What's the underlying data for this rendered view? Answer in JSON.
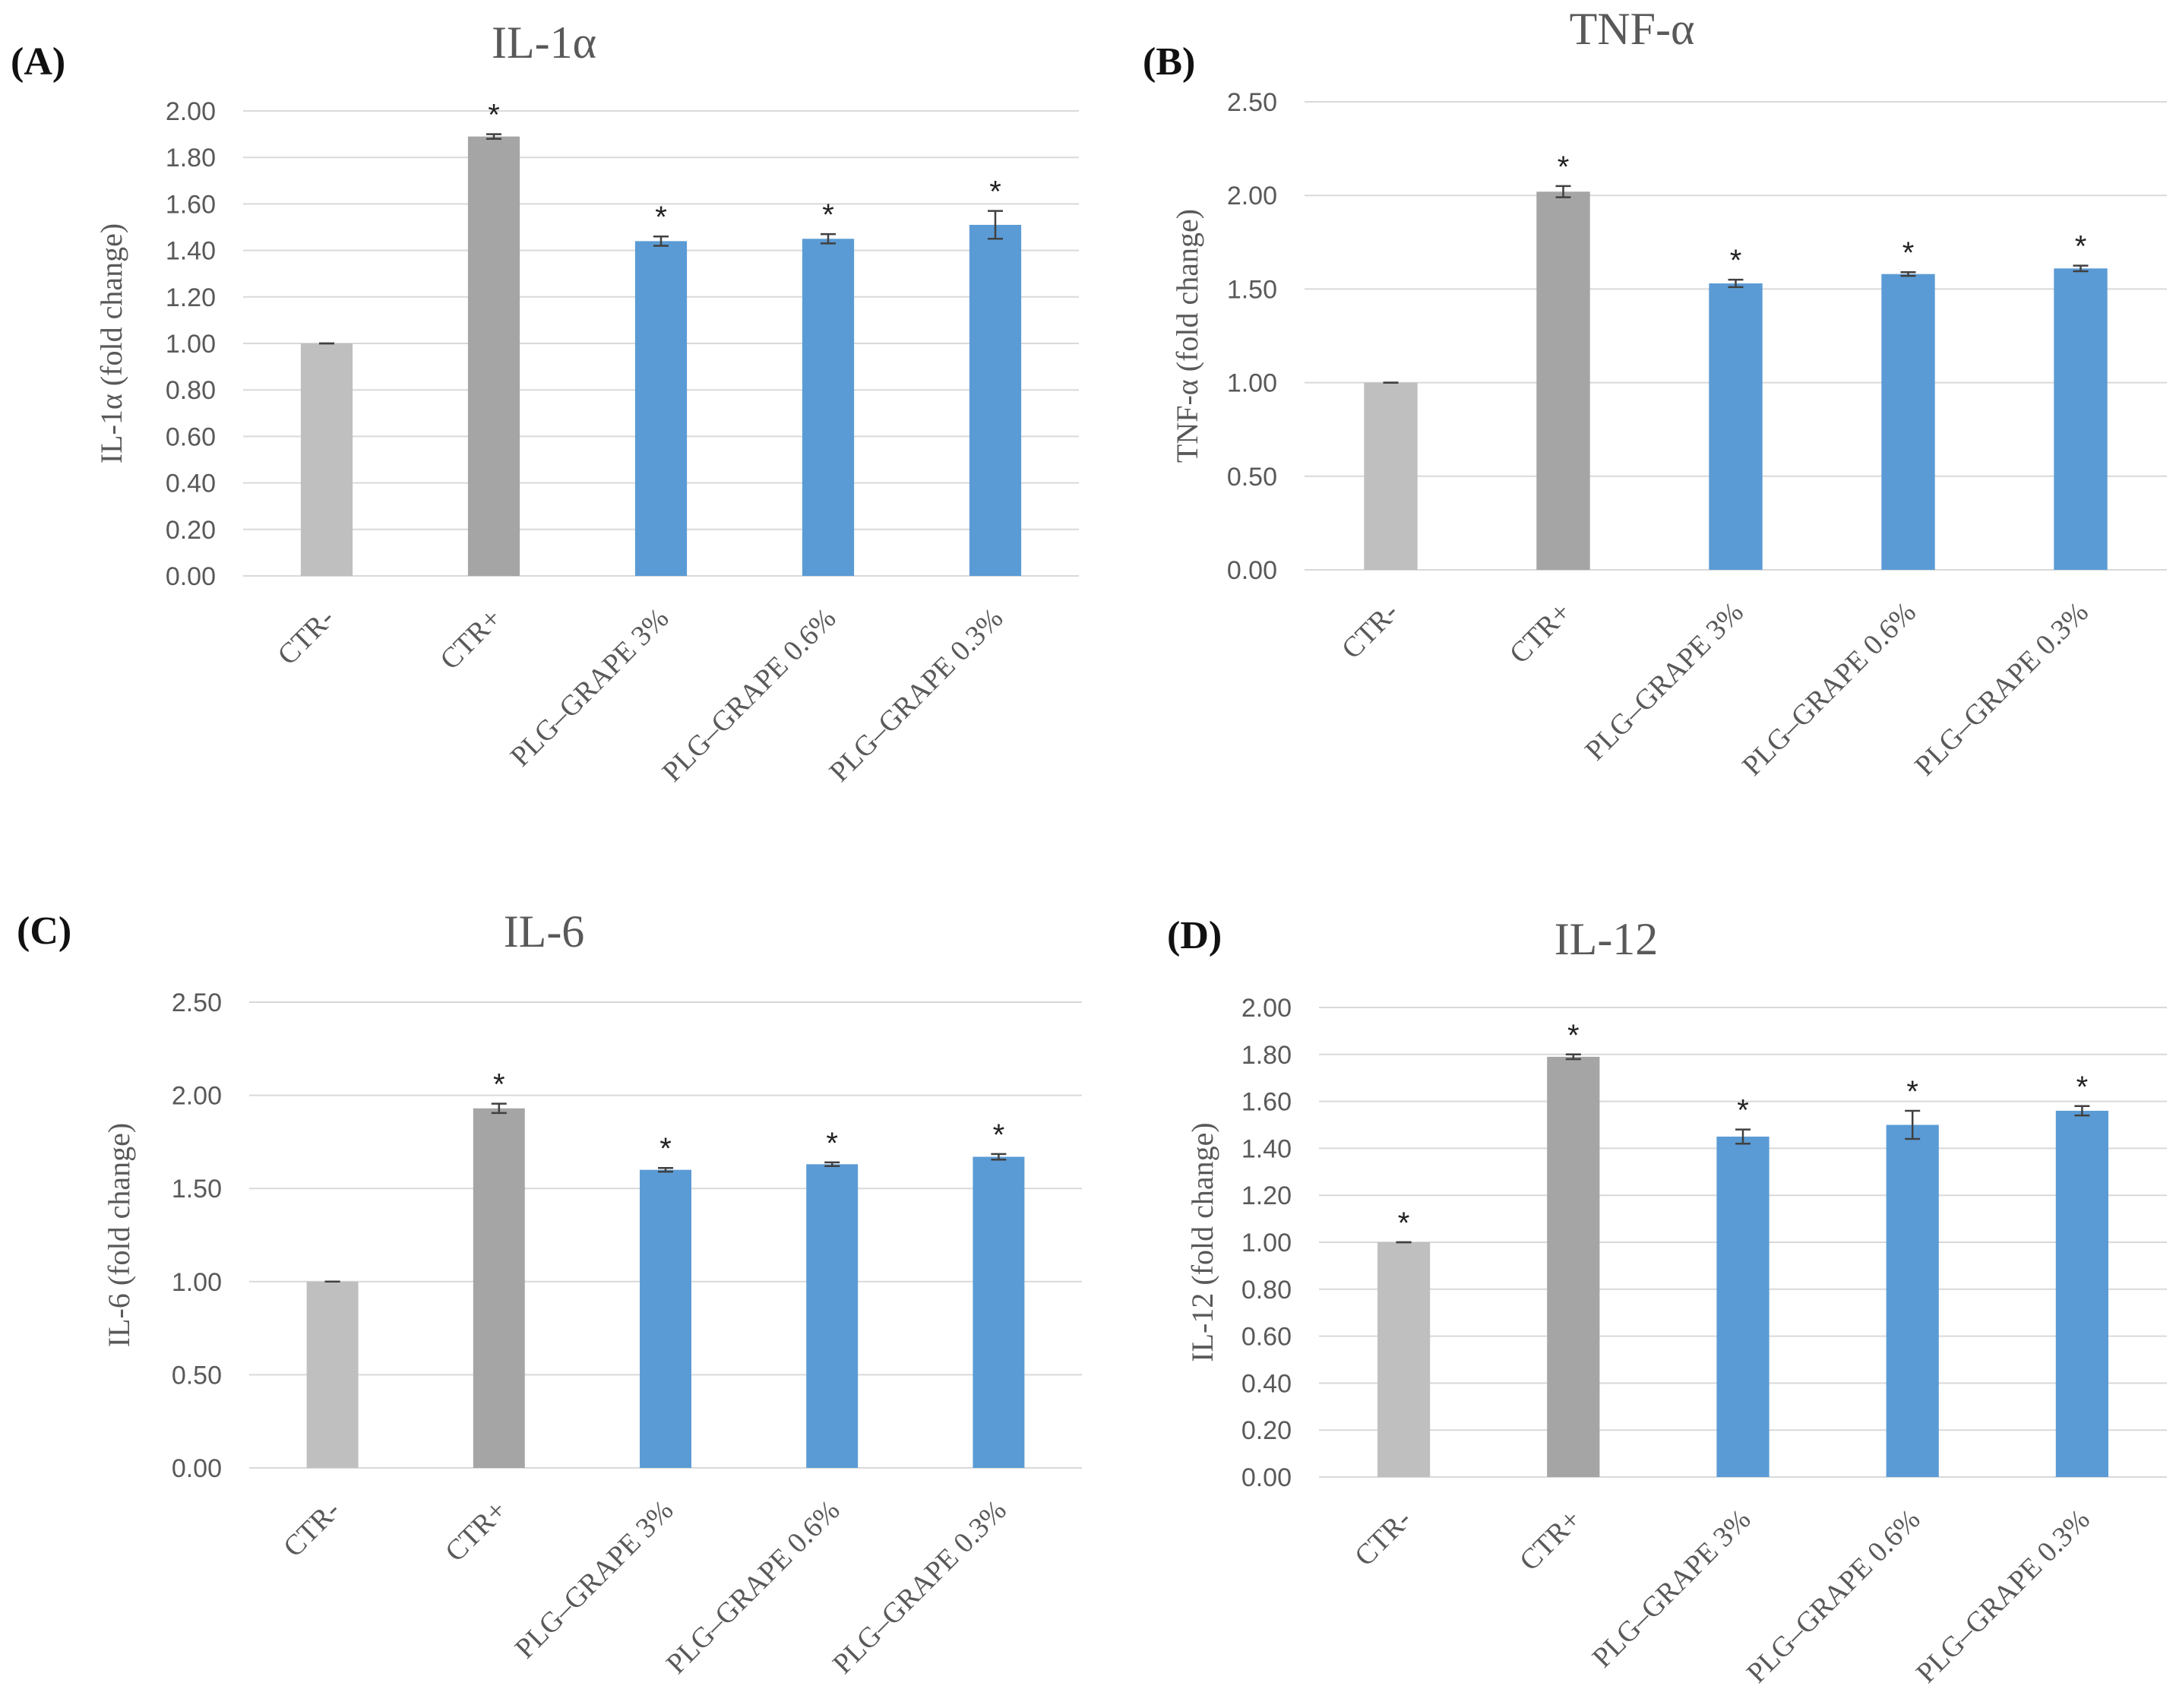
{
  "colors": {
    "negative_control": "#bfbfbf",
    "positive_control": "#a5a5a5",
    "treatment": "#5b9bd5"
  },
  "chart_data": [
    {
      "panel": "(A)",
      "type": "bar",
      "title": "IL-1α",
      "ylabel": "IL-1α (fold change)",
      "categories": [
        "CTR-",
        "CTR+",
        "PLG–GRAPE 3%",
        "PLG–GRAPE 0.6%",
        "PLG–GRAPE 0.3%"
      ],
      "values": [
        1.0,
        1.89,
        1.44,
        1.45,
        1.51
      ],
      "errors": [
        0.0,
        0.01,
        0.02,
        0.02,
        0.06
      ],
      "significance": [
        "",
        "*",
        "*",
        "*",
        "*"
      ],
      "ylim": [
        0,
        2.0
      ],
      "yticks": [
        "0.00",
        "0.20",
        "0.40",
        "0.60",
        "0.80",
        "1.00",
        "1.20",
        "1.40",
        "1.60",
        "1.80",
        "2.00"
      ],
      "grid": true
    },
    {
      "panel": "(B)",
      "type": "bar",
      "title": "TNF-α",
      "ylabel": "TNF-α (fold change)",
      "categories": [
        "CTR-",
        "CTR+",
        "PLG–GRAPE 3%",
        "PLG–GRAPE 0.6%",
        "PLG–GRAPE 0.3%"
      ],
      "values": [
        1.0,
        2.02,
        1.53,
        1.58,
        1.61
      ],
      "errors": [
        0.0,
        0.03,
        0.02,
        0.01,
        0.015
      ],
      "significance": [
        "",
        "*",
        "*",
        "*",
        "*"
      ],
      "ylim": [
        0,
        2.5
      ],
      "yticks": [
        "0.00",
        "0.50",
        "1.00",
        "1.50",
        "2.00",
        "2.50"
      ],
      "grid": true
    },
    {
      "panel": "(C)",
      "type": "bar",
      "title": "IL-6",
      "ylabel": "IL-6 (fold change)",
      "categories": [
        "CTR-",
        "CTR+",
        "PLG–GRAPE 3%",
        "PLG–GRAPE 0.6%",
        "PLG–GRAPE 0.3%"
      ],
      "values": [
        1.0,
        1.93,
        1.6,
        1.63,
        1.67
      ],
      "errors": [
        0.0,
        0.025,
        0.01,
        0.01,
        0.015
      ],
      "significance": [
        "",
        "*",
        "*",
        "*",
        "*"
      ],
      "ylim": [
        0,
        2.5
      ],
      "yticks": [
        "0.00",
        "0.50",
        "1.00",
        "1.50",
        "2.00",
        "2.50"
      ],
      "grid": true
    },
    {
      "panel": "(D)",
      "type": "bar",
      "title": "IL-12",
      "ylabel": "IL-12 (fold change)",
      "categories": [
        "CTR-",
        "CTR+",
        "PLG–GRAPE 3%",
        "PLG–GRAPE 0.6%",
        "PLG–GRAPE 0.3%"
      ],
      "values": [
        1.0,
        1.79,
        1.45,
        1.5,
        1.56
      ],
      "errors": [
        0.0,
        0.01,
        0.03,
        0.06,
        0.02
      ],
      "significance": [
        "*",
        "*",
        "*",
        "*",
        "*"
      ],
      "ylim": [
        0,
        2.0
      ],
      "yticks": [
        "0.00",
        "0.20",
        "0.40",
        "0.60",
        "0.80",
        "1.00",
        "1.20",
        "1.40",
        "1.60",
        "1.80",
        "2.00"
      ],
      "grid": true
    }
  ]
}
